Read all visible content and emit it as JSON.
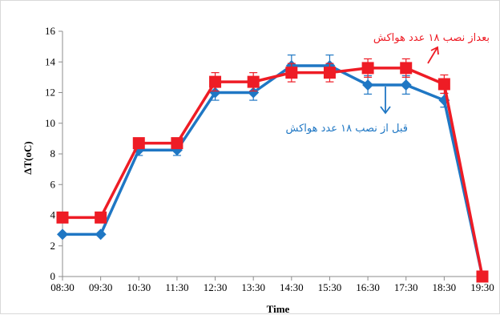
{
  "chart_data": {
    "type": "line",
    "xlabel": "Time",
    "ylabel": "ΔT(oC)",
    "categories": [
      "08:30",
      "09:30",
      "10:30",
      "11:30",
      "12:30",
      "13:30",
      "14:30",
      "15:30",
      "16:30",
      "17:30",
      "18:30",
      "19:30"
    ],
    "ylim": [
      0,
      16
    ],
    "yticks": [
      0,
      2,
      4,
      6,
      8,
      10,
      12,
      14,
      16
    ],
    "grid": false,
    "series": [
      {
        "name": "قبل از نصب ۱۸ عدد هواکش",
        "color": "#1f77c4",
        "marker": "diamond",
        "values": [
          2.75,
          2.75,
          8.25,
          8.25,
          12.0,
          12.0,
          13.75,
          13.75,
          12.5,
          12.5,
          11.5,
          0
        ],
        "error": [
          0,
          0,
          0.35,
          0.35,
          0.5,
          0.5,
          0.7,
          0.7,
          0.6,
          0.6,
          0.45,
          0
        ]
      },
      {
        "name": "بعداز نصب ۱۸ عدد هواکش",
        "color": "#ee1c25",
        "marker": "square",
        "values": [
          3.85,
          3.85,
          8.7,
          8.7,
          12.7,
          12.7,
          13.3,
          13.3,
          13.6,
          13.6,
          12.55,
          0
        ],
        "error": [
          0,
          0,
          0.3,
          0.3,
          0.6,
          0.6,
          0.6,
          0.6,
          0.6,
          0.6,
          0.6,
          0
        ]
      }
    ],
    "annotations": [
      {
        "text": "بعداز نصب ۱۸ عدد هواکش",
        "color": "#ee1c25",
        "series": 1
      },
      {
        "text": "قبل از نصب ۱۸ عدد هواکش",
        "color": "#1f77c4",
        "series": 0
      }
    ]
  }
}
